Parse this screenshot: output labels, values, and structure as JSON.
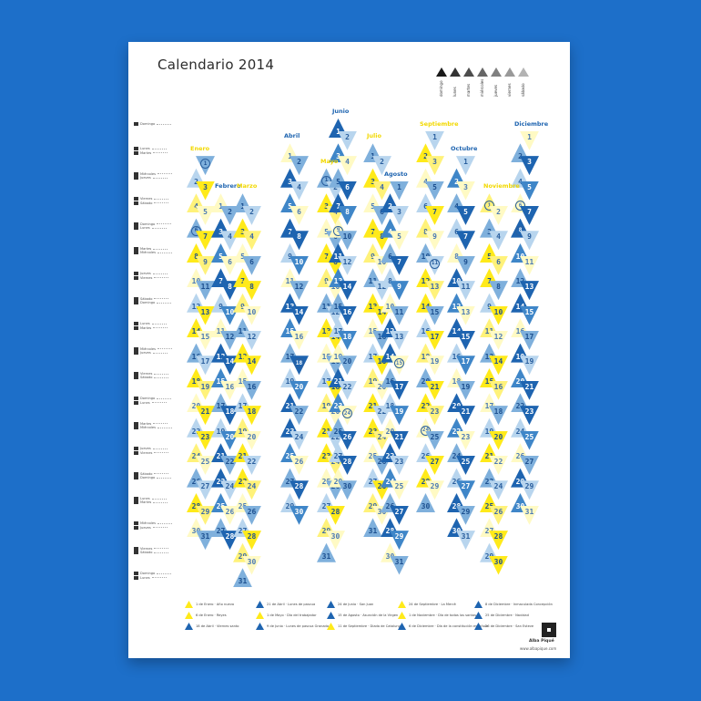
{
  "poster": {
    "title": "Calendario 2014",
    "weekday_legend": [
      {
        "label": "domingo",
        "color": "#1a1a1a"
      },
      {
        "label": "lunes",
        "color": "#333333"
      },
      {
        "label": "martes",
        "color": "#4d4d4d"
      },
      {
        "label": "miércoles",
        "color": "#666666"
      },
      {
        "label": "jueves",
        "color": "#808080"
      },
      {
        "label": "viernes",
        "color": "#999999"
      },
      {
        "label": "sábado",
        "color": "#b3b3b3"
      }
    ],
    "row_labels": [
      [
        "Domingo"
      ],
      [
        "Lunes",
        "Martes"
      ],
      [
        "Miércoles",
        "Jueves"
      ],
      [
        "Viernes",
        "Sábado"
      ],
      [
        "Domingo",
        "Lunes"
      ],
      [
        "Martes",
        "Miércoles"
      ],
      [
        "Jueves",
        "Viernes"
      ],
      [
        "Sábado",
        "Domingo"
      ],
      [
        "Lunes",
        "Martes"
      ],
      [
        "Miércoles",
        "Jueves"
      ],
      [
        "Viernes",
        "Sábado"
      ],
      [
        "Domingo",
        "Lunes"
      ],
      [
        "Martes",
        "Miércoles"
      ],
      [
        "Jueves",
        "Viernes"
      ],
      [
        "Sábado",
        "Domingo"
      ],
      [
        "Lunes",
        "Martes"
      ],
      [
        "Miércoles",
        "Jueves"
      ],
      [
        "Viernes",
        "Sábado"
      ],
      [
        "Domingo",
        "Lunes"
      ]
    ],
    "months": [
      {
        "name": "Enero",
        "start": 3,
        "days": 31,
        "color": "#f2d800"
      },
      {
        "name": "Febrero",
        "start": 6,
        "days": 28,
        "color": "#1e64b0"
      },
      {
        "name": "Marzo",
        "start": 6,
        "days": 31,
        "color": "#f2d800"
      },
      {
        "name": "Abril",
        "start": 2,
        "days": 30,
        "color": "#1e64b0"
      },
      {
        "name": "Mayo",
        "start": 4,
        "days": 31,
        "color": "#f2d800"
      },
      {
        "name": "Junio",
        "start": 0,
        "days": 30,
        "color": "#1e64b0"
      },
      {
        "name": "Julio",
        "start": 2,
        "days": 31,
        "color": "#f2d800"
      },
      {
        "name": "Agosto",
        "start": 5,
        "days": 31,
        "color": "#1e64b0"
      },
      {
        "name": "Septiembre",
        "start": 1,
        "days": 30,
        "color": "#f2d800"
      },
      {
        "name": "Octubre",
        "start": 3,
        "days": 31,
        "color": "#1e64b0"
      },
      {
        "name": "Noviembre",
        "start": 6,
        "days": 30,
        "color": "#f2d800"
      },
      {
        "name": "Diciembre",
        "start": 1,
        "days": 31,
        "color": "#1e64b0"
      }
    ],
    "circled_days": [
      [
        0,
        1
      ],
      [
        0,
        6
      ],
      [
        3,
        18
      ],
      [
        4,
        1
      ],
      [
        5,
        9
      ],
      [
        5,
        24
      ],
      [
        7,
        15
      ],
      [
        8,
        11
      ],
      [
        8,
        24
      ],
      [
        10,
        1
      ],
      [
        11,
        6
      ],
      [
        11,
        8
      ]
    ],
    "holidays": [
      {
        "day": "1",
        "text": "de Enero · Año nuevo",
        "color": "#ffea1a"
      },
      {
        "day": "6",
        "text": "de Enero · Reyes",
        "color": "#ffea1a"
      },
      {
        "day": "18",
        "text": "de Abril · Viernes santo",
        "color": "#1e64b0"
      },
      {
        "day": "21",
        "text": "de Abril · Lunes de pascua",
        "color": "#1e64b0"
      },
      {
        "day": "1",
        "text": "de Mayo · Día del trabajador",
        "color": "#ffea1a"
      },
      {
        "day": "9",
        "text": "de Junio · Lunes de pascua Granada",
        "color": "#1e64b0"
      },
      {
        "day": "24",
        "text": "de Junio · San Juan",
        "color": "#1e64b0"
      },
      {
        "day": "15",
        "text": "de Agosto · Asunción de la Virgen",
        "color": "#1e64b0"
      },
      {
        "day": "11",
        "text": "de Septiembre · Diada de Catalunya",
        "color": "#ffea1a"
      },
      {
        "day": "24",
        "text": "de Septiembre · La Mercè",
        "color": "#ffea1a"
      },
      {
        "day": "1",
        "text": "de Noviembre · Día de todos los santos",
        "color": "#ffea1a"
      },
      {
        "day": "6",
        "text": "de Diciembre · Día de la constitución española",
        "color": "#1e64b0"
      },
      {
        "day": "8",
        "text": "de Diciembre · Inmaculada Concepción",
        "color": "#1e64b0"
      },
      {
        "day": "25",
        "text": "de Diciembre · Navidad",
        "color": "#1e64b0"
      },
      {
        "day": "26",
        "text": "de Diciembre · San Esteve",
        "color": "#1e64b0"
      }
    ],
    "footer_name": "Alba Piqué",
    "footer_url": "www.albapique.com"
  }
}
